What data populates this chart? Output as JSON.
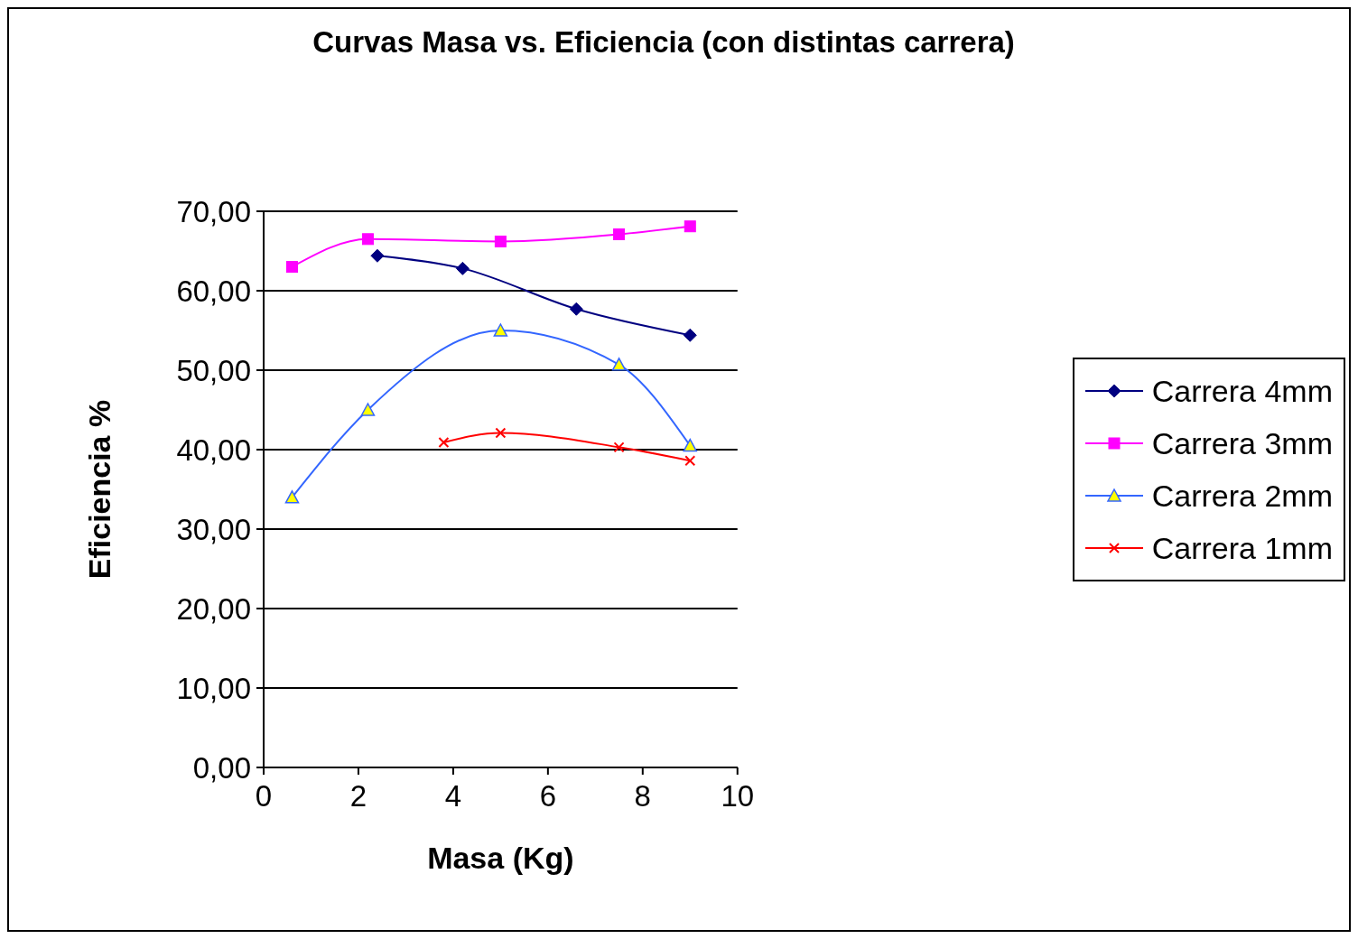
{
  "chart_data": {
    "type": "line",
    "title": "Curvas Masa vs. Eficiencia (con distintas carrera)",
    "xlabel": "Masa (Kg)",
    "ylabel": "Eficiencia %",
    "xlim": [
      0,
      10
    ],
    "xticks": [
      0,
      2,
      4,
      6,
      8,
      10
    ],
    "ylim": [
      0,
      70
    ],
    "yticks": [
      {
        "value": 0,
        "label": "0,00"
      },
      {
        "value": 10,
        "label": "10,00"
      },
      {
        "value": 20,
        "label": "20,00"
      },
      {
        "value": 30,
        "label": "30,00"
      },
      {
        "value": 40,
        "label": "40,00"
      },
      {
        "value": 50,
        "label": "50,00"
      },
      {
        "value": 60,
        "label": "60,00"
      },
      {
        "value": 70,
        "label": "70,00"
      }
    ],
    "grid": "y",
    "legend": "right",
    "series": [
      {
        "name": "Carrera 4mm",
        "color": "#000080",
        "marker": "diamond",
        "x": [
          2.4,
          4.2,
          6.6,
          9.0
        ],
        "values": [
          64.4,
          62.8,
          57.7,
          54.4
        ]
      },
      {
        "name": "Carrera 3mm",
        "color": "#ff00ff",
        "marker": "square",
        "x": [
          0.6,
          2.2,
          5.0,
          7.5,
          9.0
        ],
        "values": [
          63.0,
          66.5,
          66.2,
          67.1,
          68.1
        ]
      },
      {
        "name": "Carrera 2mm",
        "color": "#3366ff",
        "marker": "triangle",
        "x": [
          0.6,
          2.2,
          5.0,
          7.5,
          9.0
        ],
        "values": [
          34.0,
          45.0,
          55.0,
          50.7,
          40.5
        ]
      },
      {
        "name": "Carrera 1mm",
        "color": "#ff0000",
        "marker": "cross",
        "x": [
          3.8,
          5.0,
          7.5,
          9.0
        ],
        "values": [
          40.9,
          42.1,
          40.3,
          38.6
        ]
      }
    ]
  }
}
